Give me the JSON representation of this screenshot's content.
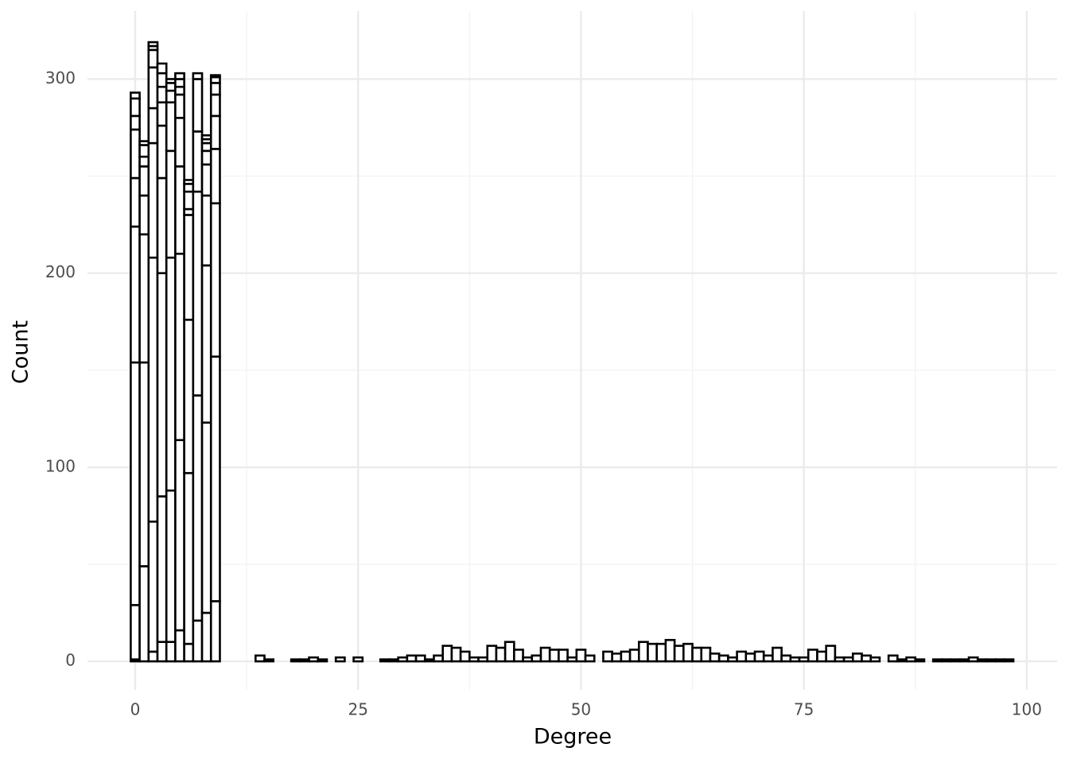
{
  "chart_data": {
    "type": "histogram",
    "x_label": "Degree",
    "y_label": "Count",
    "bins": [
      -0.5,
      0.5,
      1.5,
      2.5,
      3.5,
      4.5,
      5.5,
      6.5,
      7.5,
      8.5,
      9.5,
      10.5,
      11.5,
      12.5,
      13.5,
      14.5,
      15.5,
      16.5,
      17.5,
      18.5,
      19.5,
      20.5,
      21.5,
      22.5,
      23.5,
      24.5,
      25.5,
      26.5,
      27.5,
      28.5,
      29.5,
      30.5,
      31.5,
      32.5,
      33.5,
      34.5,
      35.5,
      36.5,
      37.5,
      38.5,
      39.5,
      40.5,
      41.5,
      42.5,
      43.5,
      44.5,
      45.5,
      46.5,
      47.5,
      48.5,
      49.5,
      50.5,
      51.5,
      52.5,
      53.5,
      54.5,
      55.5,
      56.5,
      57.5,
      58.5,
      59.5,
      60.5,
      61.5,
      62.5,
      63.5,
      64.5,
      65.5,
      66.5,
      67.5,
      68.5,
      69.5,
      70.5,
      71.5,
      72.5,
      73.5,
      74.5,
      75.5,
      76.5,
      77.5,
      78.5,
      79.5,
      80.5,
      81.5,
      82.5,
      83.5,
      84.5,
      85.5,
      86.5,
      87.5,
      88.5,
      89.5,
      90.5,
      91.5,
      92.5,
      93.5,
      94.5,
      95.5,
      96.5,
      97.5,
      98.5
    ],
    "counts": [
      [
        1,
        28,
        125,
        70,
        25,
        25,
        7,
        9,
        3
      ],
      [
        49,
        105,
        66,
        20,
        15,
        5,
        6,
        2
      ],
      [
        5,
        67,
        136,
        59,
        18,
        21,
        9,
        2,
        2
      ],
      [
        10,
        75,
        115,
        49,
        27,
        12,
        8,
        7,
        5
      ],
      [
        10,
        78,
        120,
        55,
        25,
        6,
        4,
        2
      ],
      [
        16,
        98,
        96,
        45,
        25,
        12,
        4,
        4,
        3
      ],
      [
        9,
        88,
        79,
        54,
        3,
        9,
        4,
        2
      ],
      [
        21,
        116,
        105,
        31,
        27,
        3
      ],
      [
        25,
        98,
        81,
        36,
        16,
        7,
        4,
        2,
        2
      ],
      [
        31,
        126,
        79,
        28,
        17,
        11,
        6,
        3,
        1
      ],
      [
        0
      ],
      [
        0
      ],
      [
        0
      ],
      [
        0
      ],
      [
        3
      ],
      [
        1
      ],
      [
        0
      ],
      [
        0
      ],
      [
        1
      ],
      [
        1
      ],
      [
        2
      ],
      [
        1
      ],
      [
        0
      ],
      [
        2
      ],
      [
        0
      ],
      [
        2
      ],
      [
        0
      ],
      [
        0
      ],
      [
        1
      ],
      [
        1
      ],
      [
        2
      ],
      [
        3
      ],
      [
        3
      ],
      [
        1
      ],
      [
        3
      ],
      [
        8
      ],
      [
        7
      ],
      [
        5
      ],
      [
        2
      ],
      [
        2
      ],
      [
        8
      ],
      [
        7
      ],
      [
        10
      ],
      [
        6
      ],
      [
        2
      ],
      [
        3
      ],
      [
        7
      ],
      [
        6
      ],
      [
        6
      ],
      [
        2
      ],
      [
        6
      ],
      [
        3
      ],
      [
        0
      ],
      [
        5
      ],
      [
        4
      ],
      [
        5
      ],
      [
        6
      ],
      [
        10
      ],
      [
        9
      ],
      [
        9
      ],
      [
        11
      ],
      [
        8
      ],
      [
        9
      ],
      [
        7
      ],
      [
        7
      ],
      [
        4
      ],
      [
        3
      ],
      [
        2
      ],
      [
        5
      ],
      [
        4
      ],
      [
        5
      ],
      [
        3
      ],
      [
        7
      ],
      [
        3
      ],
      [
        2
      ],
      [
        2
      ],
      [
        6
      ],
      [
        5
      ],
      [
        8
      ],
      [
        2
      ],
      [
        2
      ],
      [
        4
      ],
      [
        3
      ],
      [
        2
      ],
      [
        0
      ],
      [
        3
      ],
      [
        1
      ],
      [
        2
      ],
      [
        1
      ],
      [
        0
      ],
      [
        1
      ],
      [
        1
      ],
      [
        1
      ],
      [
        1
      ],
      [
        2
      ],
      [
        1
      ],
      [
        1
      ],
      [
        1
      ],
      [
        1
      ]
    ],
    "fill": "#ffffff",
    "edge_color": "#000000",
    "xlim": [
      -5.35,
      103.4
    ],
    "ylim": [
      -14.7,
      335
    ],
    "xticks": [
      0,
      25,
      50,
      75,
      100
    ],
    "yticks": [
      0,
      100,
      200,
      300
    ],
    "xminor": [
      12.5,
      37.5,
      62.5,
      87.5
    ],
    "yminor": [
      50,
      150,
      250
    ],
    "grid": true
  }
}
